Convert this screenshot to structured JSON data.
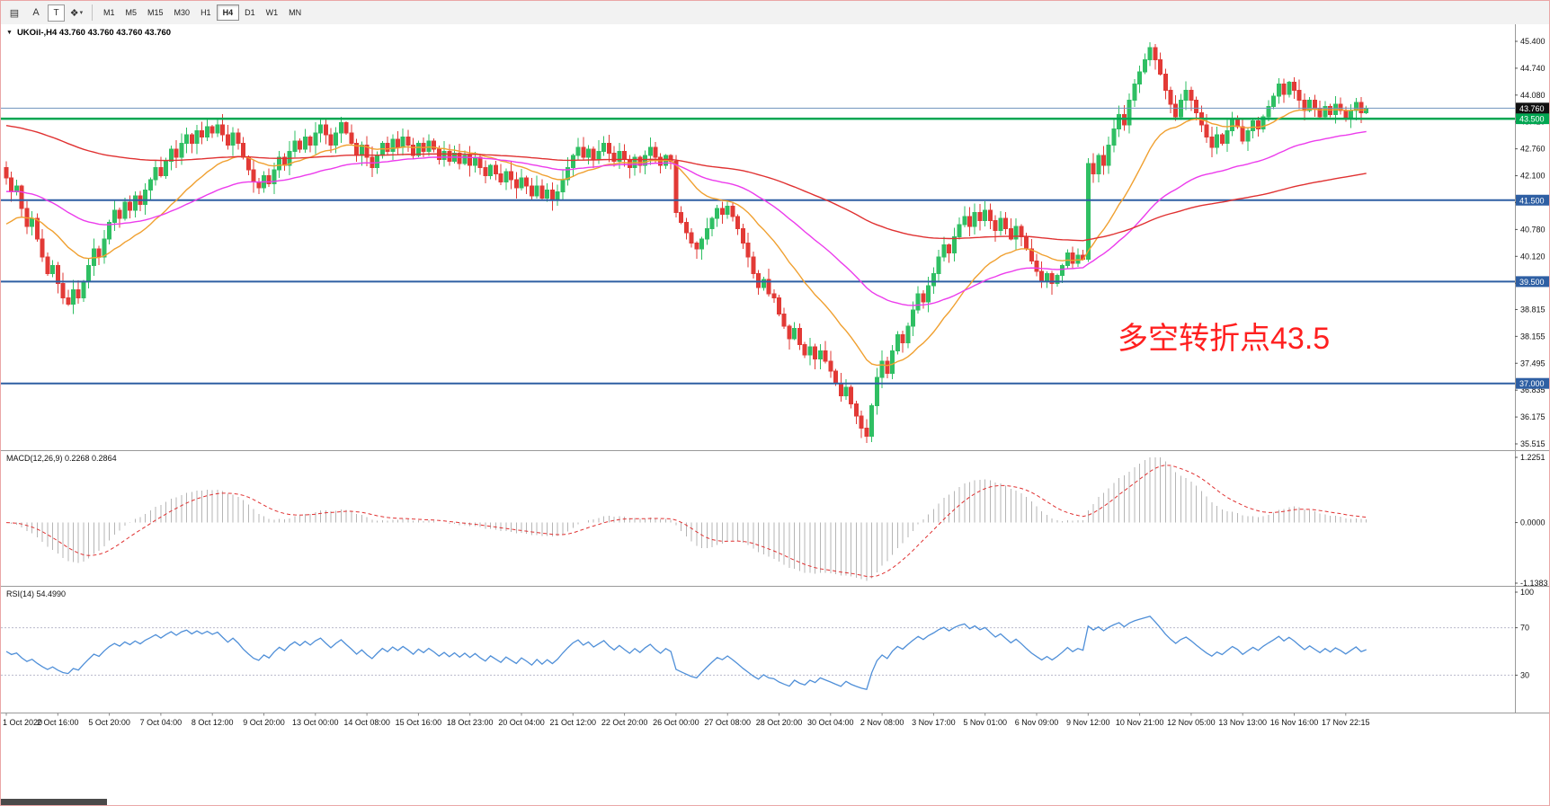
{
  "toolbar": {
    "tools": [
      {
        "name": "chart-mode-icon",
        "glyph": "▤"
      },
      {
        "name": "annotation-font-tool",
        "glyph": "A"
      },
      {
        "name": "text-tool",
        "glyph": "T",
        "boxed": true
      },
      {
        "name": "objects-tool",
        "glyph": "❖",
        "caret": true
      }
    ],
    "timeframes": [
      {
        "label": "M1"
      },
      {
        "label": "M5"
      },
      {
        "label": "M15"
      },
      {
        "label": "M30"
      },
      {
        "label": "H1"
      },
      {
        "label": "H4",
        "active": true
      },
      {
        "label": "D1"
      },
      {
        "label": "W1"
      },
      {
        "label": "MN"
      }
    ]
  },
  "chart_data": {
    "type": "candlestick",
    "symbol": "UKOil-",
    "timeframe": "H4",
    "header_line": "UKOil-,H4 43.760 43.760 43.760 43.760",
    "ohlc_current": {
      "open": "43.760",
      "high": "43.760",
      "low": "43.760",
      "close": "43.760"
    },
    "annotation": {
      "text": "多空转折点43.5",
      "color": "#ff1f1f"
    },
    "price_panel": {
      "ylim": [
        35.515,
        45.4
      ],
      "yticks": [
        "45.400",
        "44.740",
        "44.080",
        "43.420",
        "42.760",
        "42.100",
        "41.440",
        "40.780",
        "40.120",
        "39.460",
        "38.815",
        "38.155",
        "37.495",
        "36.835",
        "36.175",
        "35.515"
      ],
      "up_color": "#2fbf63",
      "down_color": "#e23a36",
      "current_price": {
        "value": 43.76,
        "label": "43.760",
        "line_color": "#6f93bd",
        "tag_bg": "#111111"
      },
      "hlines": [
        {
          "value": 43.5,
          "label": "43.500",
          "color": "#00a651",
          "tag_bg": "#00a651",
          "width": 2.5
        },
        {
          "value": 41.5,
          "label": "41.500",
          "color": "#2e5fa3",
          "tag_bg": "#2e5fa3",
          "width": 2
        },
        {
          "value": 39.5,
          "label": "39.500",
          "color": "#2e5fa3",
          "tag_bg": "#2e5fa3",
          "width": 2
        },
        {
          "value": 37.0,
          "label": "37.000",
          "color": "#2e5fa3",
          "tag_bg": "#2e5fa3",
          "width": 2
        }
      ],
      "moving_averages": [
        {
          "name": "ma-fast-orange",
          "period": 21,
          "seed": 40.8,
          "color": "#f0a030"
        },
        {
          "name": "ma-mid-magenta",
          "period": 55,
          "seed": 41.7,
          "color": "#ec3cec"
        },
        {
          "name": "ma-slow-red",
          "period": 150,
          "seed": 43.35,
          "color": "#e03131"
        }
      ],
      "closes": [
        42.05,
        41.7,
        41.85,
        41.3,
        40.85,
        41.05,
        40.55,
        40.1,
        39.7,
        39.9,
        39.45,
        39.1,
        38.95,
        39.3,
        39.1,
        39.5,
        39.9,
        40.3,
        40.1,
        40.55,
        40.95,
        41.25,
        41.05,
        41.45,
        41.25,
        41.6,
        41.4,
        41.75,
        42.0,
        42.3,
        42.1,
        42.45,
        42.75,
        42.55,
        42.9,
        43.1,
        42.9,
        43.2,
        43.05,
        43.3,
        43.15,
        43.35,
        43.1,
        42.85,
        43.15,
        42.9,
        42.55,
        42.25,
        41.95,
        41.8,
        42.1,
        41.9,
        42.25,
        42.55,
        42.35,
        42.7,
        42.95,
        42.75,
        43.05,
        42.85,
        43.15,
        43.35,
        43.1,
        42.85,
        43.15,
        43.4,
        43.15,
        42.9,
        42.6,
        42.85,
        42.55,
        42.3,
        42.6,
        42.9,
        42.7,
        43.0,
        42.8,
        43.05,
        42.85,
        42.6,
        42.9,
        42.7,
        42.95,
        42.75,
        42.5,
        42.7,
        42.45,
        42.65,
        42.4,
        42.6,
        42.35,
        42.55,
        42.3,
        42.1,
        42.35,
        42.15,
        41.95,
        42.2,
        42.0,
        41.8,
        42.05,
        41.85,
        41.6,
        41.85,
        41.55,
        41.75,
        41.5,
        41.7,
        42.0,
        42.3,
        42.6,
        42.8,
        42.55,
        42.75,
        42.5,
        42.7,
        42.9,
        42.65,
        42.45,
        42.7,
        42.5,
        42.3,
        42.55,
        42.35,
        42.6,
        42.8,
        42.55,
        42.35,
        42.6,
        42.45,
        41.2,
        40.95,
        40.7,
        40.45,
        40.3,
        40.55,
        40.8,
        41.05,
        41.3,
        41.15,
        41.35,
        41.1,
        40.8,
        40.45,
        40.1,
        39.7,
        39.35,
        39.55,
        39.2,
        39.1,
        38.7,
        38.4,
        38.1,
        38.35,
        37.95,
        37.7,
        37.9,
        37.6,
        37.8,
        37.55,
        37.3,
        37.0,
        36.7,
        36.9,
        36.5,
        36.2,
        35.9,
        35.7,
        36.45,
        37.15,
        37.55,
        37.25,
        37.8,
        38.2,
        38.0,
        38.4,
        38.8,
        39.2,
        39.0,
        39.4,
        39.7,
        40.1,
        40.4,
        40.2,
        40.6,
        40.9,
        41.1,
        40.85,
        41.2,
        41.0,
        41.25,
        41.0,
        40.75,
        41.05,
        40.8,
        40.55,
        40.85,
        40.6,
        40.3,
        40.0,
        39.75,
        39.5,
        39.7,
        39.45,
        39.65,
        39.9,
        40.2,
        39.95,
        40.15,
        40.05,
        42.4,
        42.15,
        42.6,
        42.35,
        42.85,
        43.25,
        43.6,
        43.35,
        43.95,
        44.35,
        44.65,
        44.95,
        45.25,
        44.95,
        44.6,
        44.2,
        43.85,
        43.55,
        43.95,
        44.2,
        43.95,
        43.65,
        43.35,
        43.05,
        42.8,
        43.1,
        42.9,
        43.2,
        43.5,
        43.3,
        42.95,
        43.2,
        43.45,
        43.25,
        43.55,
        43.8,
        44.05,
        44.35,
        44.1,
        44.4,
        44.2,
        43.95,
        43.7,
        43.95,
        43.75,
        43.55,
        43.8,
        43.6,
        43.85,
        43.7,
        43.5,
        43.7,
        43.9,
        43.65,
        43.76
      ]
    },
    "macd_panel": {
      "label": "MACD(12,26,9) 0.2268 0.2864",
      "fast": 12,
      "slow": 26,
      "signal": 9,
      "current_macd": 0.2268,
      "current_signal": 0.2864,
      "ylim": [
        -1.1383,
        1.2251
      ],
      "yticks": [
        "1.2251",
        "0.0000",
        "-1.1383"
      ],
      "hist_color": "#b5b5b5",
      "signal_color": "#e03131"
    },
    "rsi_panel": {
      "label": "RSI(14) 54.4990",
      "period": 14,
      "current": 54.499,
      "levels": [
        70,
        30
      ],
      "yticks": [
        "100",
        "70",
        "30"
      ],
      "ylim": [
        0,
        100
      ],
      "line_color": "#4f8fd8"
    },
    "bars_per_label": 10,
    "x_labels": [
      "1 Oct 2020",
      "2 Oct 16:00",
      "5 Oct 20:00",
      "7 Oct 04:00",
      "8 Oct 12:00",
      "9 Oct 20:00",
      "13 Oct 00:00",
      "14 Oct 08:00",
      "15 Oct 16:00",
      "18 Oct 23:00",
      "20 Oct 04:00",
      "21 Oct 12:00",
      "22 Oct 20:00",
      "26 Oct 00:00",
      "27 Oct 08:00",
      "28 Oct 20:00",
      "30 Oct 04:00",
      "2 Nov 08:00",
      "3 Nov 17:00",
      "5 Nov 01:00",
      "6 Nov 09:00",
      "9 Nov 12:00",
      "10 Nov 21:00",
      "12 Nov 05:00",
      "13 Nov 13:00",
      "16 Nov 16:00",
      "17 Nov 22:15"
    ]
  }
}
